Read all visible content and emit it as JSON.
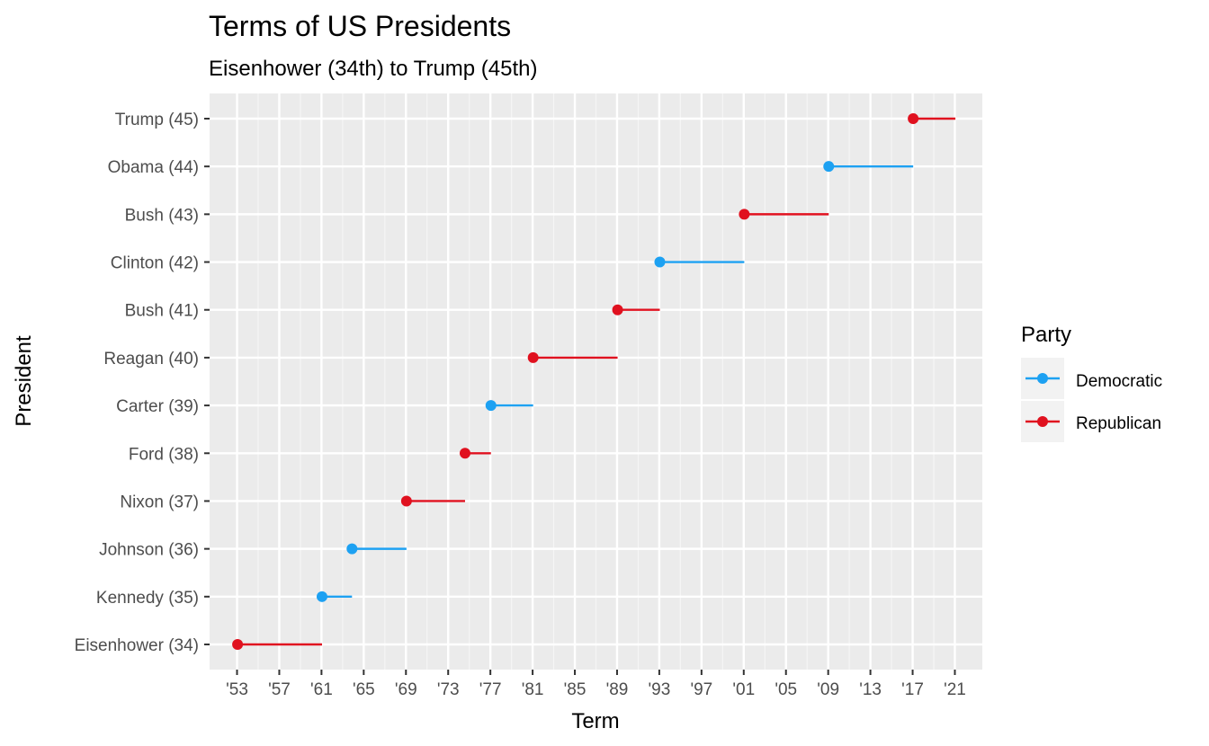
{
  "chart_data": {
    "type": "dumbbell",
    "title": "Terms of US Presidents",
    "subtitle": "Eisenhower (34th) to Trump (45th)",
    "xlabel": "Term",
    "ylabel": "President",
    "xlim": [
      1950.4,
      2023.6
    ],
    "x_ticks": [
      1953,
      1957,
      1961,
      1965,
      1969,
      1973,
      1977,
      1981,
      1985,
      1989,
      1993,
      1997,
      2001,
      2005,
      2009,
      2013,
      2017,
      2021
    ],
    "x_tick_labels": [
      "'53",
      "'57",
      "'61",
      "'65",
      "'69",
      "'73",
      "'77",
      "'81",
      "'85",
      "'89",
      "'93",
      "'97",
      "'01",
      "'05",
      "'09",
      "'13",
      "'17",
      "'21"
    ],
    "grid": true,
    "legend": {
      "title": "Party",
      "placement": "right",
      "entries": [
        {
          "label": "Democratic",
          "color": "#1da1f2"
        },
        {
          "label": "Republican",
          "color": "#e0111f"
        }
      ]
    },
    "presidents": [
      {
        "name": "Eisenhower (34)",
        "party": "Republican",
        "start": 1953.05,
        "end": 1961.05
      },
      {
        "name": "Kennedy (35)",
        "party": "Democratic",
        "start": 1961.05,
        "end": 1963.89
      },
      {
        "name": "Johnson (36)",
        "party": "Democratic",
        "start": 1963.89,
        "end": 1969.05
      },
      {
        "name": "Nixon (37)",
        "party": "Republican",
        "start": 1969.05,
        "end": 1974.6
      },
      {
        "name": "Ford (38)",
        "party": "Republican",
        "start": 1974.6,
        "end": 1977.05
      },
      {
        "name": "Carter (39)",
        "party": "Democratic",
        "start": 1977.05,
        "end": 1981.05
      },
      {
        "name": "Reagan (40)",
        "party": "Republican",
        "start": 1981.05,
        "end": 1989.05
      },
      {
        "name": "Bush (41)",
        "party": "Republican",
        "start": 1989.05,
        "end": 1993.05
      },
      {
        "name": "Clinton (42)",
        "party": "Democratic",
        "start": 1993.05,
        "end": 2001.05
      },
      {
        "name": "Bush (43)",
        "party": "Republican",
        "start": 2001.05,
        "end": 2009.05
      },
      {
        "name": "Obama (44)",
        "party": "Democratic",
        "start": 2009.05,
        "end": 2017.05
      },
      {
        "name": "Trump (45)",
        "party": "Republican",
        "start": 2017.05,
        "end": 2021.05
      }
    ]
  }
}
